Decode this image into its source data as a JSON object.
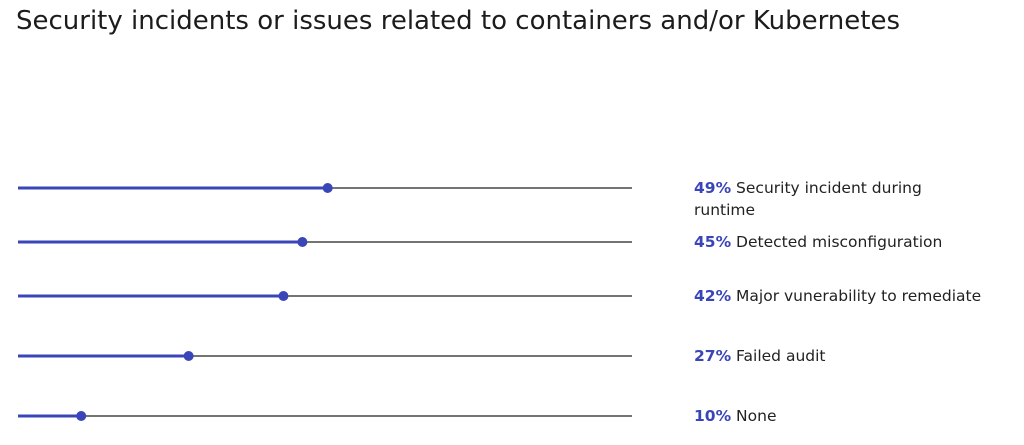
{
  "chart_data": {
    "type": "lollipop",
    "title": "Security incidents or issues related to containers and/or Kubernetes",
    "categories": [
      "Security incident during runtime",
      "Detected misconfiguration",
      "Major vunerability to remediate",
      "Failed audit",
      "None"
    ],
    "values": [
      49,
      45,
      42,
      27,
      10
    ],
    "value_labels": [
      "49%",
      "45%",
      "42%",
      "27%",
      "10%"
    ],
    "color": "#3a46b8",
    "xlim": [
      0,
      100
    ]
  }
}
